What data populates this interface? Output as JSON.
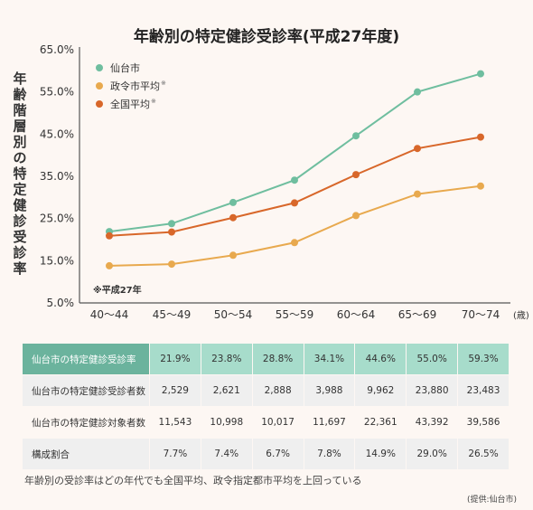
{
  "title": "年齢別の特定健診受診率(平成27年度)",
  "chart_data": {
    "type": "line",
    "ylabel": "年齢階層別の特定健診受診率",
    "yticks": [
      "65.0%",
      "55.0%",
      "45.0%",
      "35.0%",
      "25.0%",
      "15.0%",
      "5.0%"
    ],
    "ylim": [
      5,
      65
    ],
    "categories": [
      "40〜44",
      "45〜49",
      "50〜54",
      "55〜59",
      "60〜64",
      "65〜69",
      "70〜74"
    ],
    "xunit": "(歳)",
    "note": "※平成27年",
    "legend_position": "top-left",
    "series": [
      {
        "name": "仙台市",
        "color": "#6fbe9f",
        "values": [
          21.9,
          23.8,
          28.8,
          34.1,
          44.6,
          55.0,
          59.3
        ]
      },
      {
        "name": "政令市平均",
        "color": "#e8a94e",
        "values": [
          13.8,
          14.2,
          16.3,
          19.3,
          25.7,
          30.8,
          32.7
        ]
      },
      {
        "name": "全国平均",
        "color": "#d8672a",
        "values": [
          20.9,
          21.8,
          25.2,
          28.7,
          35.4,
          41.6,
          44.3
        ]
      }
    ],
    "legend_marks": [
      "※",
      "※"
    ]
  },
  "table": {
    "rows": [
      {
        "label": "仙台市の特定健診受診率",
        "cells": [
          "21.9%",
          "23.8%",
          "28.8%",
          "34.1%",
          "44.6%",
          "55.0%",
          "59.3%"
        ]
      },
      {
        "label": "仙台市の特定健診受診者数",
        "cells": [
          "2,529",
          "2,621",
          "2,888",
          "3,988",
          "9,962",
          "23,880",
          "23,483"
        ]
      },
      {
        "label": "仙台市の特定健診対象者数",
        "cells": [
          "11,543",
          "10,998",
          "10,017",
          "11,697",
          "22,361",
          "43,392",
          "39,586"
        ]
      },
      {
        "label": "構成割合",
        "cells": [
          "7.7%",
          "7.4%",
          "6.7%",
          "7.8%",
          "14.9%",
          "29.0%",
          "26.5%"
        ]
      }
    ]
  },
  "caption": "年齢別の受診率はどの年代でも全国平均、政令指定都市平均を上回っている",
  "source": "(提供:仙台市)"
}
